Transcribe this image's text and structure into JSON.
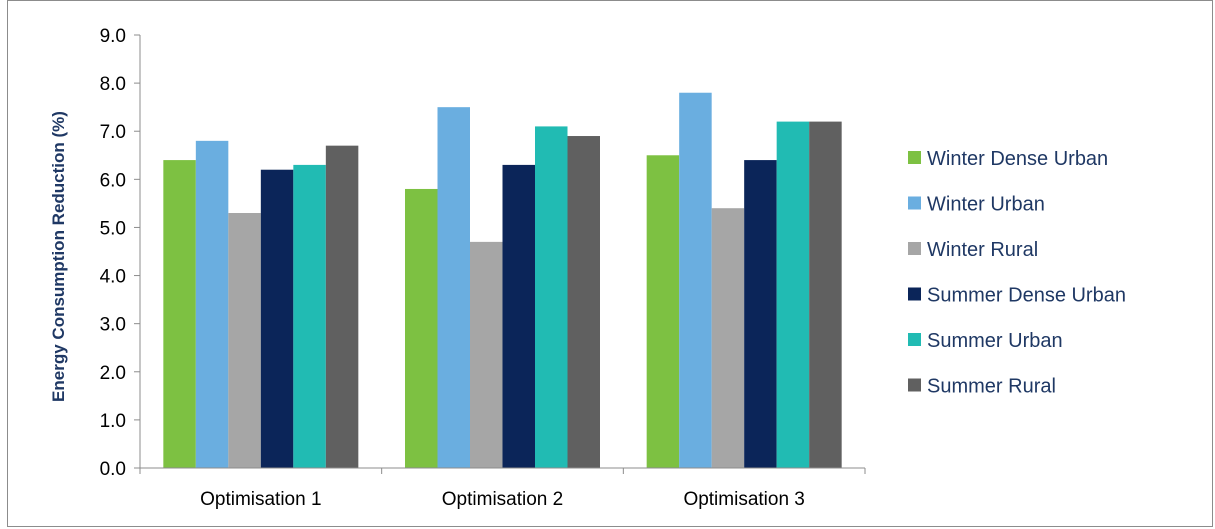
{
  "chart_data": {
    "type": "bar",
    "title": "",
    "xlabel": "",
    "ylabel": "Energy Consumption Reduction (%)",
    "categories": [
      "Optimisation 1",
      "Optimisation 2",
      "Optimisation 3"
    ],
    "ylim": [
      0,
      9
    ],
    "yticks": [
      "0.0",
      "1.0",
      "2.0",
      "3.0",
      "4.0",
      "5.0",
      "6.0",
      "7.0",
      "8.0",
      "9.0"
    ],
    "grid": false,
    "legend_position": "right",
    "series": [
      {
        "name": "Winter Dense Urban",
        "color": "#7dc142",
        "values": [
          6.4,
          5.8,
          6.5
        ]
      },
      {
        "name": "Winter Urban",
        "color": "#6aaee0",
        "values": [
          6.8,
          7.5,
          7.8
        ]
      },
      {
        "name": "Winter Rural",
        "color": "#a6a6a6",
        "values": [
          5.3,
          4.7,
          5.4
        ]
      },
      {
        "name": "Summer Dense Urban",
        "color": "#0b2559",
        "values": [
          6.2,
          6.3,
          6.4
        ]
      },
      {
        "name": "Summer Urban",
        "color": "#21bbb3",
        "values": [
          6.3,
          7.1,
          7.2
        ]
      },
      {
        "name": "Summer Rural",
        "color": "#606060",
        "values": [
          6.7,
          6.9,
          7.2
        ]
      }
    ]
  }
}
